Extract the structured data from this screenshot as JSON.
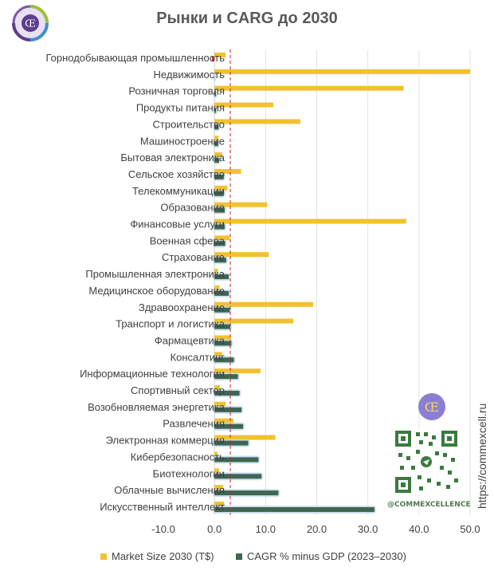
{
  "title": "Рынки и CARG до 2030",
  "side_url": "https://commexcell.ru",
  "qr_handle": "@COMMEXCELLENCE",
  "logo_monogram": "Œ",
  "colors": {
    "market": "#F2C12E",
    "cagr": "#3E6652",
    "cagr_glow": "#BBD3EA",
    "refline": "#C0262D",
    "grid": "#E3E3E3",
    "negative_marker": "#C0262D"
  },
  "chart_data": {
    "type": "bar",
    "orientation": "horizontal",
    "categories": [
      "Горнодобывающая промышленность",
      "Недвижимость",
      "Розничная торговля",
      "Продукты питания",
      "Строительство",
      "Машиностроение",
      "Бытовая электроника",
      "Сельское хозяйство",
      "Телекоммуникации",
      "Образование",
      "Финансовые услуги",
      "Военная сфера",
      "Страхование",
      "Промышленная электроника",
      "Медицинское оборудование",
      "Здравоохранение",
      "Транспорт и логистика",
      "Фармацевтика",
      "Консалтинг",
      "Информационные технологии",
      "Спортивный сектор",
      "Возобновляемая энергетика",
      "Развлечения",
      "Электронная коммерция",
      "Кибербезопасность",
      "Биотехнологии",
      "Облачные вычисления",
      "Искусственный интеллект"
    ],
    "series": [
      {
        "name": "Market Size 2030 (T$)",
        "values": [
          2.2,
          50.0,
          37.0,
          11.5,
          16.8,
          0.8,
          1.5,
          5.2,
          2.5,
          10.3,
          37.5,
          3.0,
          10.6,
          0.7,
          1.0,
          19.3,
          15.4,
          3.2,
          1.5,
          9.0,
          1.1,
          2.2,
          3.7,
          11.9,
          0.6,
          0.9,
          1.7,
          1.9
        ]
      },
      {
        "name": "CAGR % minus GDP (2023–2030)",
        "values": [
          -0.5,
          0.0,
          0.3,
          0.3,
          0.8,
          0.7,
          0.9,
          1.8,
          1.8,
          2.0,
          2.0,
          2.1,
          2.3,
          2.8,
          2.8,
          3.0,
          3.1,
          3.3,
          3.8,
          4.6,
          4.9,
          5.3,
          5.6,
          6.6,
          8.6,
          9.2,
          12.5,
          31.3
        ]
      }
    ],
    "reference_line": 3.1,
    "xlim": [
      -10,
      50
    ],
    "xticks": [
      "-10.0",
      "0.0",
      "10.0",
      "20.0",
      "30.0",
      "40.0",
      "50.0"
    ],
    "grid": "vertical",
    "legend_position": "bottom"
  }
}
